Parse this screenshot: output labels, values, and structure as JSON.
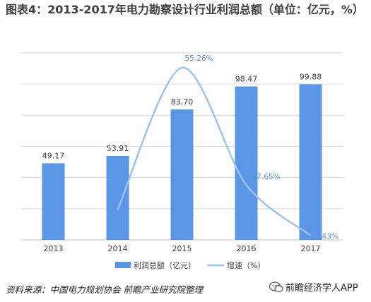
{
  "title": "图表4：2013-2017年电力勘察设计行业利润总额（单位：亿元，%）",
  "source": "资料来源：中国电力规划协会 前瞻产业研究院整理",
  "brand": "前瞻经济学人APP",
  "colors": {
    "bar": "#5b96e6",
    "line": "#9cc3ec",
    "grid": "#d9d9d9",
    "axis": "#bfbfbf",
    "label": "#404040",
    "line_label": "#5b8fd8"
  },
  "chart_data": {
    "type": "bar",
    "categories": [
      "2013",
      "2014",
      "2015",
      "2016",
      "2017"
    ],
    "series": [
      {
        "name": "利润总额（亿元）",
        "type": "bar",
        "values": [
          49.17,
          53.91,
          83.7,
          98.47,
          99.88
        ],
        "labels": [
          "49.17",
          "53.91",
          "83.70",
          "98.47",
          "99.88"
        ]
      },
      {
        "name": "增速（%）",
        "type": "line",
        "smooth": true,
        "x": [
          "2014",
          "2015",
          "2016",
          "2017"
        ],
        "values": [
          9.64,
          55.26,
          17.65,
          1.43
        ],
        "labels": [
          "",
          "55.26%",
          "17.65%",
          "1.43%"
        ]
      }
    ],
    "ylim": [
      0,
      120
    ],
    "y2lim": [
      0,
      60
    ],
    "grid": true,
    "legend": "bottom"
  }
}
